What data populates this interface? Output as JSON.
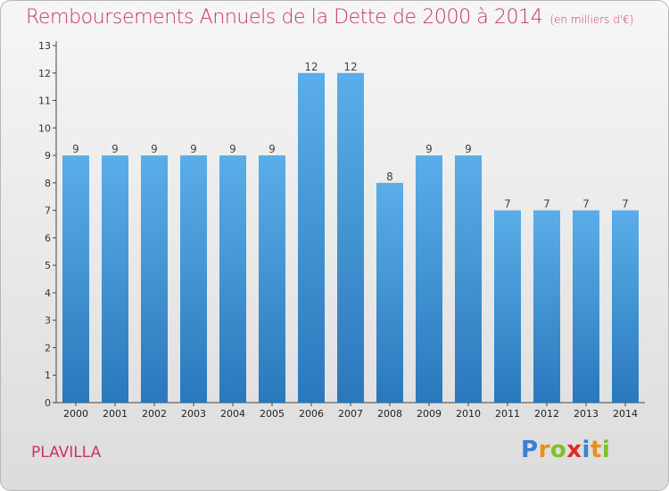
{
  "title": "Remboursements Annuels de la Dette de 2000 à 2014",
  "unit": "(en milliers d'€)",
  "commune": "PLAVILLA",
  "logo": {
    "letters": [
      "P",
      "r",
      "o",
      "x",
      "i",
      "t",
      "i"
    ],
    "colors": [
      "#3a7fd0",
      "#e8901e",
      "#7fbf2a",
      "#e02828",
      "#3a7fd0",
      "#e8901e",
      "#7fbf2a"
    ]
  },
  "chart_data": {
    "type": "bar",
    "title": "Remboursements Annuels de la Dette de 2000 à 2014",
    "categories": [
      "2000",
      "2001",
      "2002",
      "2003",
      "2004",
      "2005",
      "2006",
      "2007",
      "2008",
      "2009",
      "2010",
      "2011",
      "2012",
      "2013",
      "2014"
    ],
    "values": [
      9,
      9,
      9,
      9,
      9,
      9,
      12,
      12,
      8,
      9,
      9,
      7,
      7,
      7,
      7
    ],
    "ylim": [
      0,
      13
    ],
    "yticks": [
      0,
      1,
      2,
      3,
      4,
      5,
      6,
      7,
      8,
      9,
      10,
      11,
      12,
      13
    ],
    "grid": false,
    "bar_color_top": "#5aaee8",
    "bar_color_bottom": "#2a78bc"
  }
}
